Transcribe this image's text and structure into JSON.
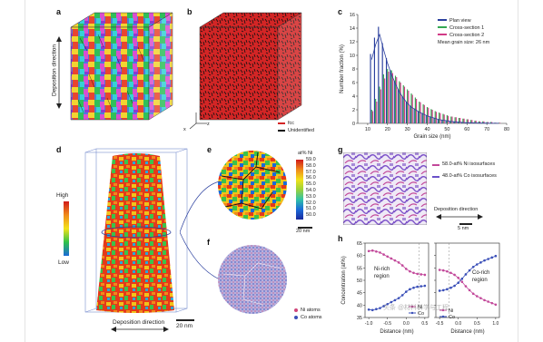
{
  "panels": {
    "a": {
      "letter": "a",
      "ylabel": "Deposition direction",
      "axis_y": "y",
      "axis_x": "x",
      "axis_z": "z"
    },
    "b": {
      "letter": "b",
      "legend": [
        {
          "label": "fcc",
          "color": "#d32525"
        },
        {
          "label": "Unidentified",
          "color": "#111111"
        }
      ]
    },
    "d": {
      "letter": "d",
      "high": "High",
      "low": "Low",
      "xlabel": "Deposition direction",
      "scale": "20 nm"
    },
    "e": {
      "letter": "e",
      "cbar_title": "at% Ni",
      "cbar_ticks": [
        "59.0",
        "58.0",
        "57.0",
        "56.0",
        "55.0",
        "54.0",
        "53.0",
        "52.0",
        "51.0",
        "50.0"
      ],
      "scale": "20 nm"
    },
    "f": {
      "letter": "f",
      "legend": [
        {
          "label": "Ni atoms",
          "color": "#d0457a"
        },
        {
          "label": "Co atoms",
          "color": "#3a4fb8"
        }
      ]
    },
    "g": {
      "letter": "g",
      "legend": [
        {
          "label": "58.0-at% Ni isosurfaces",
          "color": "#c2489a"
        },
        {
          "label": "48.0-at% Co isosurfaces",
          "color": "#6a50c8"
        }
      ],
      "xlabel": "Deposition direction",
      "scale": "5 nm"
    },
    "h": {
      "letter": "h",
      "ylabel": "Concentration (at%)",
      "xlabel_left": "Distance (nm)",
      "xlabel_right": "Distance (nm)",
      "region_left": "Ni-rich region",
      "region_right": "Co-rich region",
      "legend": [
        "Ni",
        "Co"
      ]
    },
    "c": {
      "letter": "c",
      "ylabel": "Number fraction (%)",
      "xlabel": "Grain size (nm)",
      "annotation": "Mean grain size: 26 nm"
    }
  },
  "watermark": "头条 @材料科学与工程",
  "chart_data": [
    {
      "type": "bar",
      "title": "",
      "xlabel": "Grain size (nm)",
      "ylabel": "Number fraction (%)",
      "xlim": [
        5,
        80
      ],
      "ylim": [
        0,
        16
      ],
      "xticks": [
        10,
        20,
        30,
        40,
        50,
        60,
        70,
        80
      ],
      "yticks": [
        0,
        2,
        4,
        6,
        8,
        10,
        12,
        14,
        16
      ],
      "legend_position": "top-right",
      "x": [
        12,
        14,
        16,
        18,
        20,
        22,
        24,
        26,
        28,
        30,
        32,
        34,
        36,
        38,
        40,
        42,
        44,
        46,
        48,
        50,
        52,
        54,
        56,
        58,
        60,
        62,
        64,
        66,
        68,
        70,
        72,
        74,
        76
      ],
      "series": [
        {
          "name": "Plan view",
          "color": "#2a3f9e",
          "values": [
            10.2,
            12.6,
            14.2,
            11.8,
            9.6,
            7.8,
            6.3,
            5.0,
            4.0,
            3.2,
            2.6,
            2.2,
            1.8,
            1.5,
            1.2,
            1.0,
            0.8,
            0.6,
            0.5,
            0.4,
            0.3,
            0.25,
            0.2,
            0.15,
            0.1,
            0.1,
            0.08,
            0.05,
            0.05,
            0.03,
            0.02,
            0.02,
            0.01
          ]
        },
        {
          "name": "Cross-section 1",
          "color": "#33a852",
          "values": [
            2.0,
            3.6,
            5.4,
            7.2,
            8.0,
            7.8,
            7.0,
            6.2,
            5.6,
            5.0,
            4.4,
            3.8,
            3.2,
            2.8,
            2.4,
            2.1,
            1.8,
            1.6,
            1.4,
            1.2,
            1.0,
            0.9,
            0.8,
            0.7,
            0.6,
            0.5,
            0.4,
            0.3,
            0.3,
            0.2,
            0.2,
            0.1,
            0.1
          ]
        },
        {
          "name": "Cross-section 2",
          "color": "#d13a86",
          "values": [
            1.8,
            3.2,
            5.0,
            6.6,
            7.6,
            7.4,
            6.8,
            6.0,
            5.4,
            4.8,
            4.2,
            3.6,
            3.1,
            2.7,
            2.3,
            2.0,
            1.7,
            1.5,
            1.3,
            1.1,
            1.0,
            0.9,
            0.8,
            0.7,
            0.6,
            0.5,
            0.4,
            0.3,
            0.3,
            0.2,
            0.2,
            0.1,
            0.1
          ]
        }
      ]
    },
    {
      "type": "line",
      "title": "",
      "xlabel": "Distance (nm)",
      "ylabel": "Concentration (at%)",
      "xlim": [
        -1.1,
        0.6
      ],
      "ylim": [
        35,
        65
      ],
      "xticks": [
        -1.0,
        -0.5,
        0,
        0.5
      ],
      "yticks": [
        35,
        40,
        45,
        50,
        55,
        60,
        65
      ],
      "x": [
        -1.0,
        -0.9,
        -0.8,
        -0.7,
        -0.6,
        -0.5,
        -0.4,
        -0.3,
        -0.2,
        -0.1,
        0.0,
        0.1,
        0.2,
        0.3,
        0.4,
        0.5
      ],
      "series": [
        {
          "name": "Ni",
          "color": "#c2489a",
          "values": [
            61.8,
            62.0,
            61.6,
            61.2,
            60.4,
            59.6,
            58.8,
            58.0,
            57.2,
            56.0,
            54.6,
            53.6,
            53.0,
            52.6,
            52.4,
            52.2
          ]
        },
        {
          "name": "Co",
          "color": "#3a4fb8",
          "values": [
            38.2,
            38.0,
            38.4,
            38.8,
            39.6,
            40.4,
            41.2,
            42.0,
            42.8,
            44.0,
            45.4,
            46.4,
            47.0,
            47.4,
            47.6,
            47.8
          ]
        }
      ]
    },
    {
      "type": "line",
      "title": "",
      "xlabel": "Distance (nm)",
      "ylabel": "",
      "xlim": [
        -0.6,
        1.1
      ],
      "ylim": [
        35,
        65
      ],
      "xticks": [
        -0.5,
        0,
        0.5,
        1.0
      ],
      "yticks": [
        35,
        40,
        45,
        50,
        55,
        60,
        65
      ],
      "x": [
        -0.5,
        -0.4,
        -0.3,
        -0.2,
        -0.1,
        0.0,
        0.1,
        0.2,
        0.3,
        0.4,
        0.5,
        0.6,
        0.7,
        0.8,
        0.9,
        1.0
      ],
      "series": [
        {
          "name": "Ni",
          "color": "#c2489a",
          "values": [
            54.2,
            54.0,
            53.6,
            53.0,
            52.2,
            51.0,
            49.4,
            47.6,
            46.0,
            44.6,
            43.6,
            42.8,
            42.0,
            41.4,
            40.8,
            40.2
          ]
        },
        {
          "name": "Co",
          "color": "#3a4fb8",
          "values": [
            45.8,
            46.0,
            46.4,
            47.0,
            47.8,
            49.0,
            50.6,
            52.4,
            54.0,
            55.4,
            56.4,
            57.2,
            58.0,
            58.6,
            59.2,
            59.8
          ]
        }
      ]
    }
  ]
}
